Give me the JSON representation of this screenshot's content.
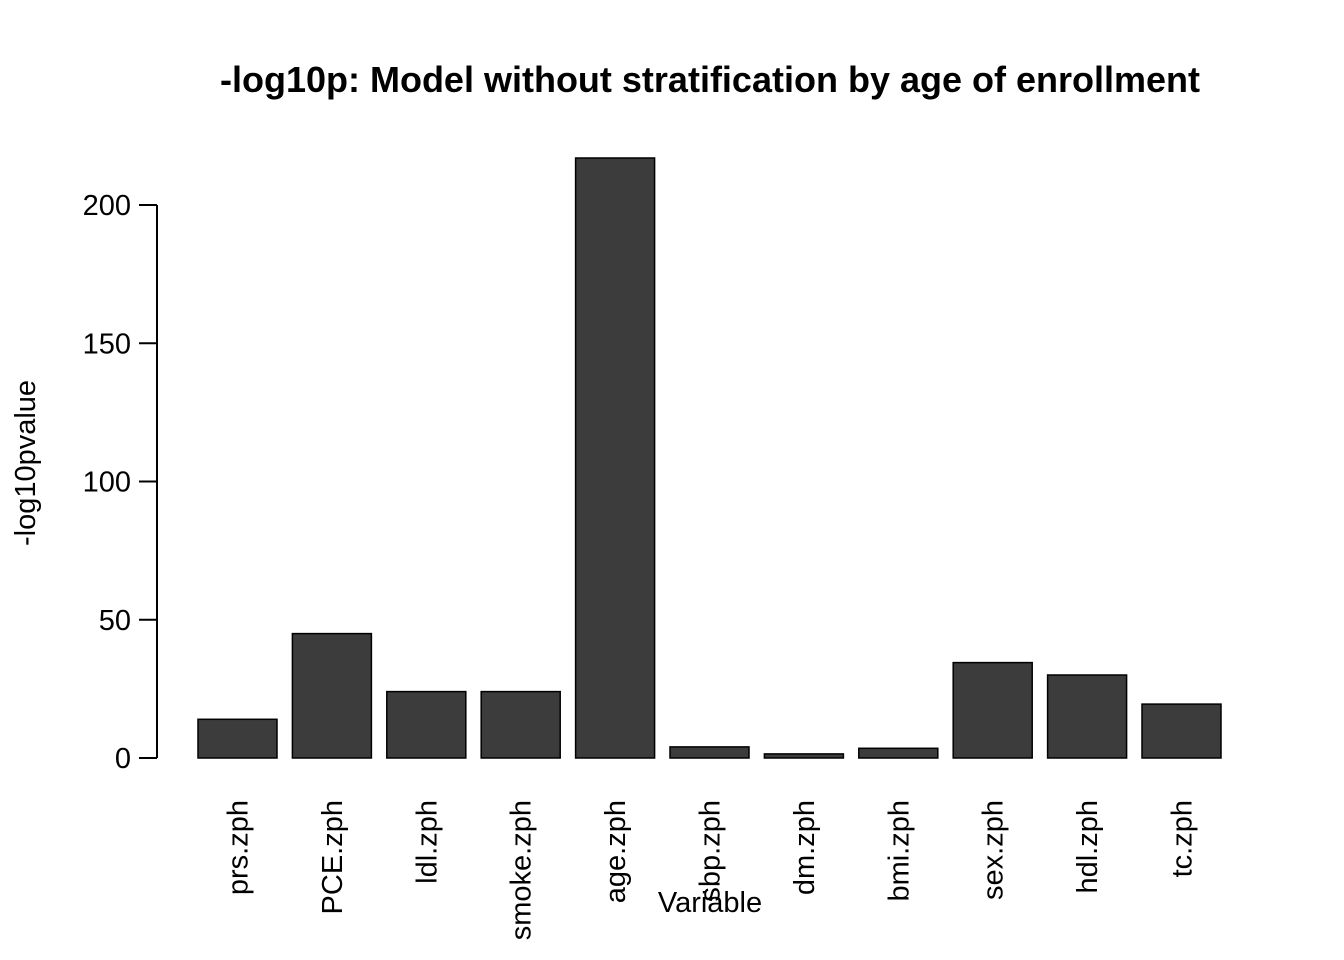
{
  "chart_data": {
    "type": "bar",
    "title": "-log10p: Model without stratification by age of enrollment",
    "xlabel": "Variable",
    "ylabel": "-log10pvalue",
    "categories": [
      "prs.zph",
      "PCE.zph",
      "ldl.zph",
      "smoke.zph",
      "age.zph",
      "sbp.zph",
      "dm.zph",
      "bmi.zph",
      "sex.zph",
      "hdl.zph",
      "tc.zph"
    ],
    "values": [
      14,
      45,
      24,
      24,
      217,
      4,
      1.5,
      3.5,
      34.5,
      30,
      19.5
    ],
    "yticks": [
      0,
      50,
      100,
      150,
      200
    ],
    "ytick_labels": [
      "0",
      "50",
      "100",
      "150",
      "200"
    ],
    "ylim": [
      0,
      217
    ],
    "grid": false,
    "legend": "none",
    "bar_color": "#3c3c3c",
    "bar_edge_color": "#000000"
  }
}
